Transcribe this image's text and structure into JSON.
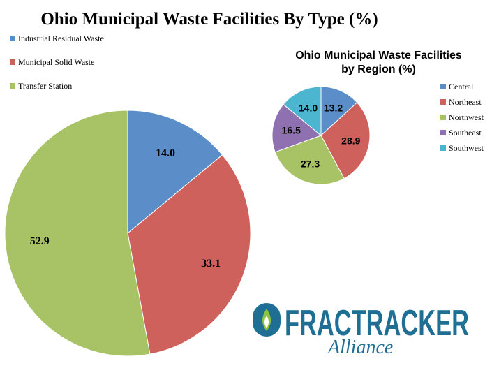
{
  "chart_data": [
    {
      "type": "pie",
      "title": "Ohio Municipal Waste Facilities By Type (%)",
      "legend_position": "top-left",
      "categories": [
        "Industrial Residual Waste",
        "Municipal Solid Waste",
        "Transfer Station"
      ],
      "values": [
        14.0,
        33.1,
        52.9
      ],
      "value_labels": [
        "14.0",
        "33.1",
        "52.9"
      ],
      "colors": [
        "#5b8dc8",
        "#cf615d",
        "#a7c366"
      ]
    },
    {
      "type": "pie",
      "title_line1": "Ohio Municipal Waste Facilities",
      "title_line2": "by Region (%)",
      "legend_position": "right",
      "categories": [
        "Central",
        "Northeast",
        "Northwest",
        "Southeast",
        "Southwest"
      ],
      "values": [
        13.2,
        28.9,
        27.3,
        16.5,
        14.0
      ],
      "value_labels": [
        "13.2",
        "28.9",
        "27.3",
        "16.5",
        "14.0"
      ],
      "colors": [
        "#5b8dc8",
        "#cf615d",
        "#a7c366",
        "#8f70b0",
        "#4cb5cf"
      ]
    }
  ],
  "logo": {
    "text_main": "FRACTRACKER",
    "text_script": "Alliance",
    "colors": {
      "primary": "#1f6e94",
      "accent": "#8dc33f"
    }
  }
}
